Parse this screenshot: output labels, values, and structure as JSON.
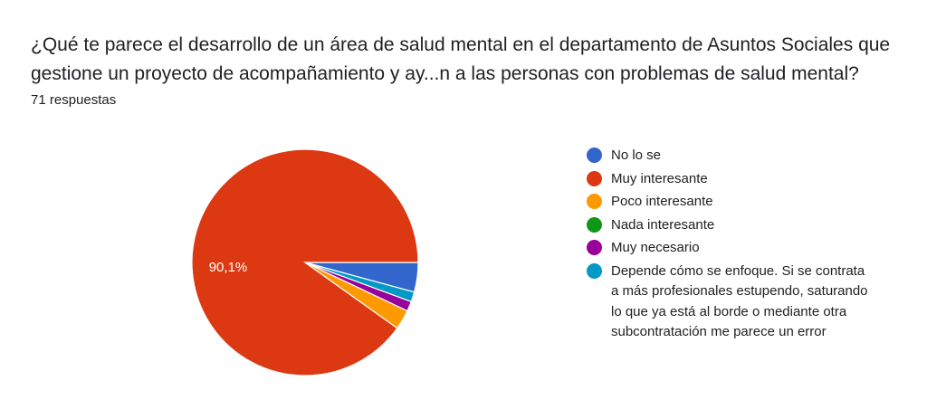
{
  "header": {
    "title": "¿Qué te parece el desarrollo de un área de salud mental en el departamento de Asuntos Sociales que gestione un proyecto de acompañamiento y ay...n a las personas con problemas de salud mental?",
    "responses": "71 respuestas"
  },
  "chart_data": {
    "type": "pie",
    "total": 71,
    "slice_labels": [
      "90,1%"
    ],
    "legend_position": "right",
    "slices": [
      {
        "label": "No lo se",
        "value": 3,
        "color": "#3366cc"
      },
      {
        "label": "Muy interesante",
        "value": 64,
        "color": "#dc3912"
      },
      {
        "label": "Poco interesante",
        "value": 2,
        "color": "#ff9900"
      },
      {
        "label": "Nada interesante",
        "value": 0,
        "color": "#109618"
      },
      {
        "label": "Muy necesario",
        "value": 1,
        "color": "#990099"
      },
      {
        "label": "Depende cómo se enfoque. Si se contrata a más profesionales estupendo, saturando lo que ya está al borde o mediante otra subcontratación me parece un error",
        "value": 1,
        "color": "#0099c6"
      }
    ]
  }
}
